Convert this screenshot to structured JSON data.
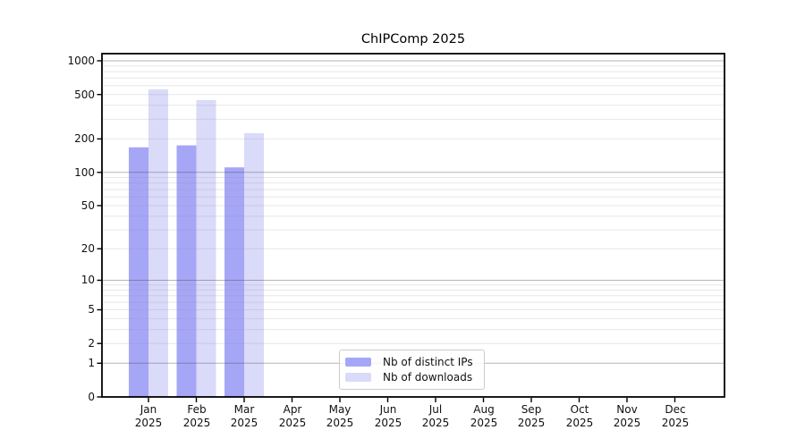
{
  "figure": {
    "background": "#ffffff"
  },
  "chart_data": {
    "type": "bar",
    "title": "ChIPComp 2025",
    "categories": [
      "Jan 2025",
      "Feb 2025",
      "Mar 2025",
      "Apr 2025",
      "May 2025",
      "Jun 2025",
      "Jul 2025",
      "Aug 2025",
      "Sep 2025",
      "Oct 2025",
      "Nov 2025",
      "Dec 2025"
    ],
    "series": [
      {
        "name": "Nb of distinct IPs",
        "color": "#a6a6f6",
        "values": [
          168,
          175,
          111,
          0,
          0,
          0,
          0,
          0,
          0,
          0,
          0,
          0
        ]
      },
      {
        "name": "Nb of downloads",
        "color": "#dadaf9",
        "values": [
          555,
          445,
          225,
          0,
          0,
          0,
          0,
          0,
          0,
          0,
          0,
          0
        ]
      }
    ],
    "yticks": [
      0,
      1,
      2,
      5,
      10,
      20,
      50,
      100,
      200,
      500,
      1000
    ],
    "ylim": [
      0,
      1000
    ],
    "yscale": "log10(value+1)",
    "xlabel": "",
    "ylabel": "",
    "grid": {
      "orientation": "horizontal",
      "major_at": [
        1,
        10,
        100,
        1000
      ],
      "minor_at": "2-9 per decade",
      "drawn_over_bars": true
    },
    "legend": {
      "position": "inside-bottom-center"
    },
    "colors": {
      "frame": "#000000",
      "grid_major": "#bcbcbc",
      "grid_minor": "#ebebeb",
      "tick": "#000000",
      "text": "#111111"
    }
  }
}
